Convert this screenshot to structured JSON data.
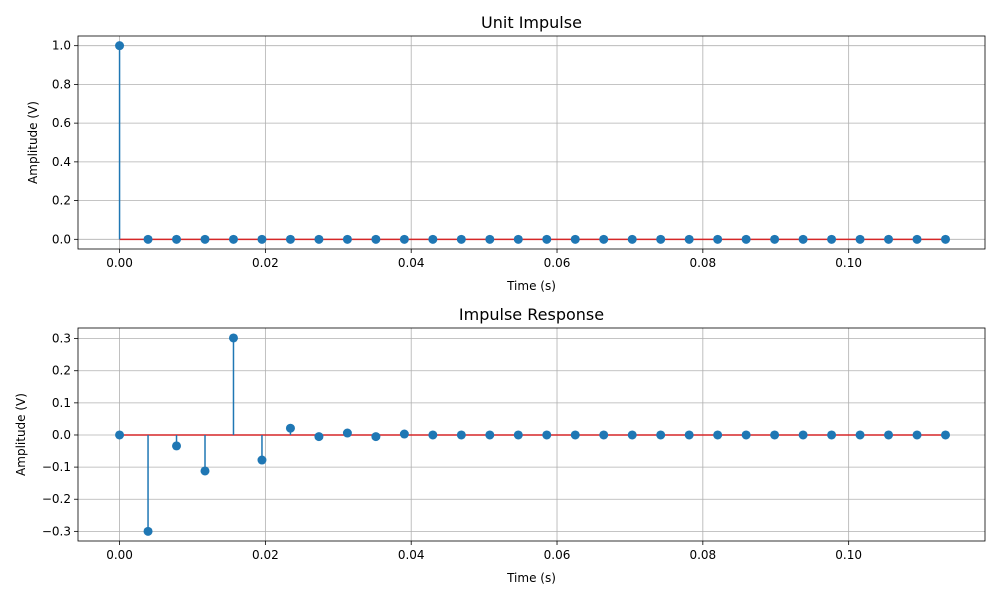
{
  "colors": {
    "stem": "#1f77b4",
    "baseline": "#d62728",
    "grid": "#b0b0b0"
  },
  "chart_data": [
    {
      "type": "stem",
      "title": "Unit Impulse",
      "xlabel": "Time (s)",
      "ylabel": "Amplitude (V)",
      "xlim": [
        -0.0057,
        0.1187
      ],
      "ylim": [
        -0.05,
        1.05
      ],
      "xticks": [
        0.0,
        0.02,
        0.04,
        0.06,
        0.08,
        0.1
      ],
      "xtick_labels": [
        "0.00",
        "0.02",
        "0.04",
        "0.06",
        "0.08",
        "0.10"
      ],
      "yticks": [
        0.0,
        0.2,
        0.4,
        0.6,
        0.8,
        1.0
      ],
      "ytick_labels": [
        "0.0",
        "0.2",
        "0.4",
        "0.6",
        "0.8",
        "1.0"
      ],
      "grid": true,
      "sample_period": 0.0039063,
      "values": [
        1,
        0,
        0,
        0,
        0,
        0,
        0,
        0,
        0,
        0,
        0,
        0,
        0,
        0,
        0,
        0,
        0,
        0,
        0,
        0,
        0,
        0,
        0,
        0,
        0,
        0,
        0,
        0,
        0,
        0
      ]
    },
    {
      "type": "stem",
      "title": "Impulse Response",
      "xlabel": "Time (s)",
      "ylabel": "Amplitude (V)",
      "xlim": [
        -0.0057,
        0.1187
      ],
      "ylim": [
        -0.33,
        0.333
      ],
      "xticks": [
        0.0,
        0.02,
        0.04,
        0.06,
        0.08,
        0.1
      ],
      "xtick_labels": [
        "0.00",
        "0.02",
        "0.04",
        "0.06",
        "0.08",
        "0.10"
      ],
      "yticks": [
        -0.3,
        -0.2,
        -0.1,
        0.0,
        0.1,
        0.2,
        0.3
      ],
      "ytick_labels": [
        "−0.3",
        "−0.2",
        "−0.1",
        "0.0",
        "0.1",
        "0.2",
        "0.3"
      ],
      "grid": true,
      "sample_period": 0.0039063,
      "values": [
        0,
        -0.3,
        -0.034,
        -0.112,
        0.302,
        -0.078,
        0.021,
        -0.005,
        0.006,
        -0.005,
        0.003,
        0,
        0,
        0,
        0,
        0,
        0,
        0,
        0,
        0,
        0,
        0,
        0,
        0,
        0,
        0,
        0,
        0,
        0,
        0
      ]
    }
  ]
}
